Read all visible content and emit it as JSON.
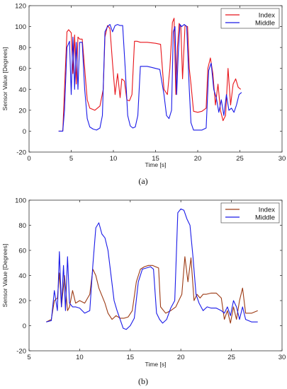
{
  "chart_data": [
    {
      "type": "line",
      "caption": "(a)",
      "xlabel": "Time [s]",
      "ylabel": "Sensor Value [Degrees]",
      "xlim": [
        0,
        30
      ],
      "ylim": [
        -20,
        120
      ],
      "xticks": [
        0,
        5,
        10,
        15,
        20,
        25,
        30
      ],
      "yticks": [
        -20,
        0,
        20,
        40,
        60,
        80,
        100,
        120
      ],
      "legend_position": "top-right",
      "series": [
        {
          "name": "Index",
          "color": "#e8141a",
          "x": [
            3.5,
            4.0,
            4.2,
            4.5,
            4.7,
            5.0,
            5.2,
            5.4,
            5.6,
            5.8,
            6.0,
            6.3,
            6.6,
            6.9,
            7.2,
            7.8,
            8.4,
            8.8,
            9.0,
            9.3,
            9.6,
            9.9,
            10.2,
            10.5,
            10.8,
            11.0,
            11.3,
            11.6,
            11.9,
            12.2,
            12.5,
            12.8,
            13.2,
            14.0,
            15.0,
            15.6,
            16.0,
            16.4,
            16.7,
            17.0,
            17.2,
            17.4,
            17.6,
            17.8,
            18.0,
            18.2,
            18.5,
            18.8,
            19.0,
            19.2,
            19.5,
            20.0,
            20.5,
            21.0,
            21.2,
            21.5,
            21.8,
            22.1,
            22.4,
            22.7,
            23.0,
            23.3,
            23.6,
            23.9,
            24.2,
            24.5,
            24.8,
            25.1
          ],
          "y": [
            0,
            0,
            40,
            95,
            97,
            94,
            55,
            92,
            45,
            90,
            88,
            88,
            60,
            30,
            22,
            20,
            24,
            40,
            90,
            101,
            98,
            65,
            35,
            55,
            32,
            50,
            48,
            30,
            29,
            35,
            86,
            86,
            85,
            85,
            84,
            83,
            40,
            35,
            60,
            104,
            108,
            35,
            80,
            103,
            100,
            50,
            101,
            100,
            60,
            45,
            19,
            18,
            19,
            22,
            60,
            70,
            55,
            25,
            45,
            20,
            10,
            15,
            60,
            25,
            45,
            50,
            42,
            40
          ]
        },
        {
          "name": "Middle",
          "color": "#1a1ae8",
          "x": [
            3.5,
            4.0,
            4.2,
            4.5,
            4.8,
            5.0,
            5.2,
            5.4,
            5.6,
            5.8,
            6.0,
            6.3,
            6.6,
            6.9,
            7.2,
            7.6,
            8.0,
            8.4,
            8.7,
            9.0,
            9.3,
            9.6,
            9.9,
            10.2,
            10.5,
            10.8,
            11.1,
            11.4,
            11.7,
            12.0,
            12.3,
            12.6,
            12.9,
            13.2,
            13.5,
            14.0,
            14.5,
            15.0,
            15.5,
            16.0,
            16.3,
            16.6,
            16.9,
            17.1,
            17.3,
            17.5,
            17.7,
            17.9,
            18.1,
            18.4,
            18.7,
            19.0,
            19.2,
            19.5,
            20.0,
            20.5,
            21.0,
            21.3,
            21.6,
            21.9,
            22.2,
            22.5,
            22.8,
            23.1,
            23.4,
            23.7,
            24.0,
            24.3,
            24.6,
            24.9,
            25.2
          ],
          "y": [
            0,
            0,
            20,
            80,
            86,
            35,
            90,
            40,
            85,
            40,
            85,
            85,
            40,
            12,
            4,
            2,
            1,
            3,
            15,
            95,
            100,
            102,
            95,
            101,
            102,
            101,
            101,
            60,
            15,
            5,
            3,
            4,
            15,
            62,
            62,
            62,
            61,
            60,
            59,
            35,
            15,
            12,
            20,
            95,
            100,
            35,
            75,
            102,
            100,
            102,
            100,
            40,
            8,
            1,
            1,
            1,
            3,
            58,
            65,
            40,
            32,
            18,
            30,
            15,
            35,
            20,
            22,
            18,
            25,
            35,
            37
          ]
        }
      ]
    },
    {
      "type": "line",
      "caption": "(b)",
      "xlabel": "Time [s]",
      "ylabel": "Sensor Value [Degrees]",
      "xlim": [
        5,
        30
      ],
      "ylim": [
        -20,
        100
      ],
      "xticks": [
        5,
        10,
        15,
        20,
        25,
        30
      ],
      "yticks": [
        -20,
        0,
        20,
        40,
        60,
        80,
        100
      ],
      "legend_position": "top-right",
      "series": [
        {
          "name": "Index",
          "color": "#9c3a14",
          "x": [
            6.7,
            7.2,
            7.5,
            7.8,
            8.0,
            8.2,
            8.5,
            8.8,
            9.0,
            9.3,
            9.6,
            10.0,
            10.5,
            11.0,
            11.3,
            11.6,
            11.9,
            12.2,
            12.5,
            12.8,
            13.2,
            13.6,
            14.0,
            14.4,
            14.8,
            15.2,
            15.6,
            16.0,
            16.4,
            16.8,
            17.2,
            17.5,
            17.8,
            18.0,
            18.5,
            19.0,
            19.5,
            19.8,
            20.1,
            20.4,
            20.7,
            21.0,
            21.3,
            21.6,
            21.9,
            22.2,
            22.5,
            23.0,
            23.5,
            24.0,
            24.3,
            24.6,
            24.9,
            25.2,
            25.5,
            25.8,
            26.1,
            26.4,
            27.0,
            27.6
          ],
          "y": [
            3,
            5,
            20,
            22,
            42,
            15,
            40,
            12,
            15,
            28,
            18,
            20,
            18,
            25,
            45,
            40,
            30,
            24,
            18,
            10,
            5,
            8,
            6,
            6,
            7,
            12,
            35,
            45,
            47,
            48,
            48,
            47,
            46,
            15,
            10,
            12,
            15,
            20,
            25,
            55,
            35,
            54,
            20,
            25,
            22,
            25,
            25,
            26,
            26,
            22,
            5,
            12,
            2,
            15,
            5,
            20,
            30,
            10,
            10,
            12
          ]
        },
        {
          "name": "Middle",
          "color": "#1a1ae8",
          "x": [
            6.7,
            7.2,
            7.5,
            7.8,
            8.0,
            8.2,
            8.4,
            8.6,
            8.8,
            9.0,
            9.3,
            9.6,
            10.0,
            10.5,
            11.0,
            11.3,
            11.6,
            11.9,
            12.2,
            12.5,
            12.8,
            13.1,
            13.4,
            13.7,
            14.0,
            14.3,
            14.6,
            15.0,
            15.4,
            15.8,
            16.2,
            16.6,
            17.0,
            17.3,
            17.6,
            17.9,
            18.2,
            18.6,
            19.0,
            19.4,
            19.7,
            20.0,
            20.3,
            20.6,
            20.9,
            21.2,
            21.5,
            21.8,
            22.2,
            22.6,
            23.0,
            23.5,
            24.0,
            24.3,
            24.6,
            24.9,
            25.2,
            25.5,
            25.8,
            26.1,
            26.4,
            27.0,
            27.6
          ],
          "y": [
            3,
            4,
            28,
            12,
            59,
            15,
            48,
            12,
            55,
            18,
            15,
            15,
            14,
            10,
            12,
            48,
            78,
            82,
            73,
            70,
            60,
            40,
            20,
            12,
            5,
            -2,
            -3,
            0,
            6,
            35,
            45,
            46,
            47,
            45,
            10,
            5,
            2,
            5,
            14,
            20,
            90,
            93,
            92,
            85,
            80,
            55,
            25,
            18,
            12,
            15,
            14,
            14,
            12,
            10,
            15,
            8,
            20,
            15,
            5,
            15,
            5,
            3,
            3
          ]
        }
      ]
    }
  ]
}
